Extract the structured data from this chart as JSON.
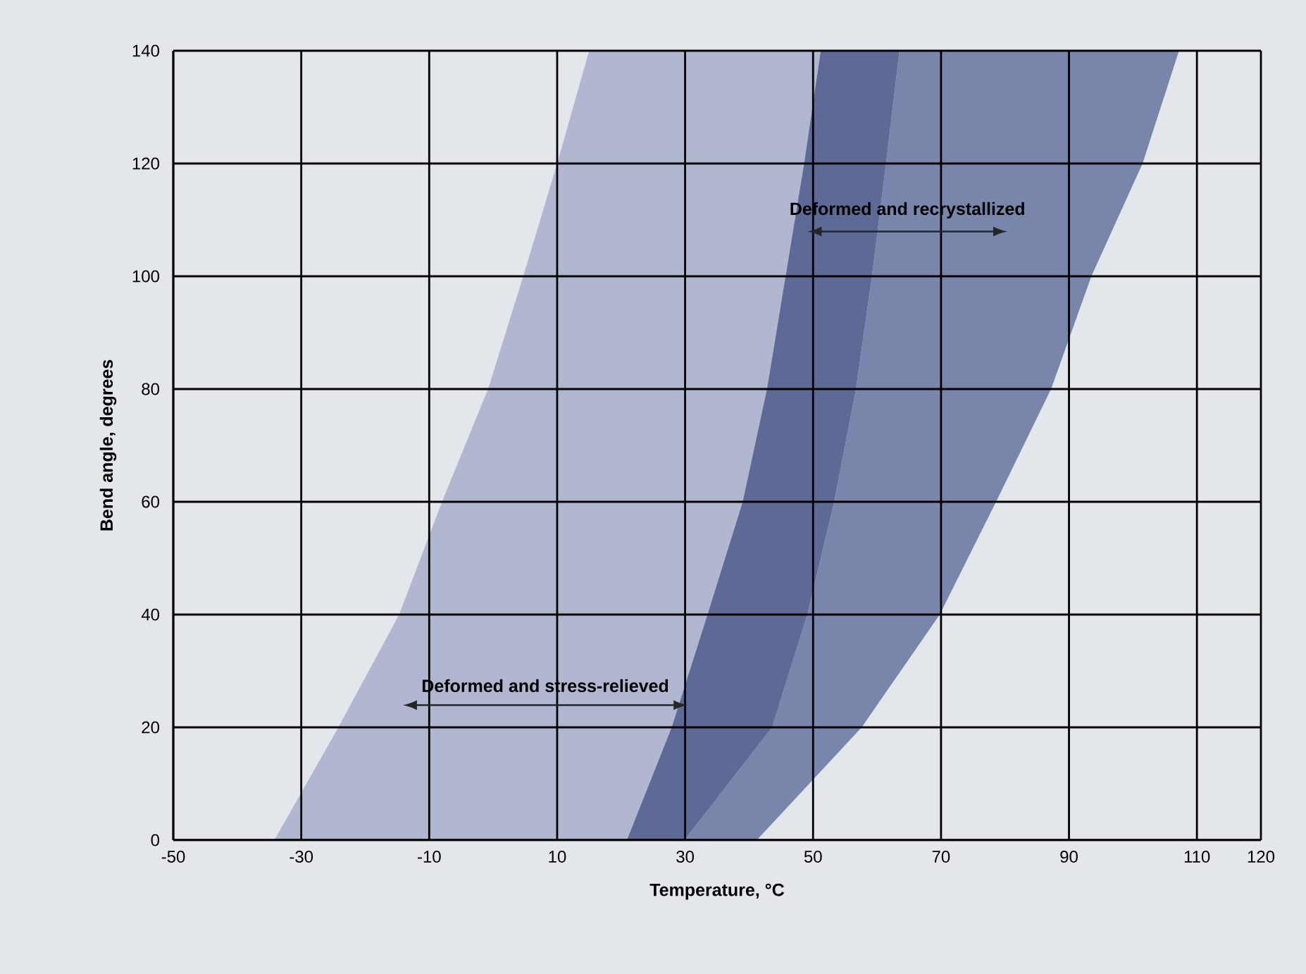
{
  "chart_data": {
    "type": "area",
    "xlabel": "Temperature, °C",
    "ylabel": "Bend angle, degrees",
    "xlim": [
      -50,
      120
    ],
    "ylim": [
      0,
      140
    ],
    "xticks": [
      -50,
      -30,
      -10,
      10,
      30,
      50,
      70,
      90,
      110,
      120
    ],
    "yticks": [
      0,
      20,
      40,
      60,
      80,
      100,
      120,
      140
    ],
    "grid": true,
    "series": [
      {
        "color": "#b1b7d0",
        "x": [
          -34.2,
          -24.2,
          -14.7,
          -8.0,
          -0.8,
          4.7,
          10.0,
          15.0,
          51.2,
          48.6,
          45.7,
          42.8,
          39.0,
          33.5,
          27.9,
          20.9
        ],
        "values": [
          0,
          20,
          40,
          60,
          80,
          100,
          120,
          140,
          140,
          120,
          100,
          80,
          60,
          40,
          20,
          0
        ]
      },
      {
        "color": "#7886ab",
        "x": [
          29.9,
          43.6,
          49.1,
          53.3,
          56.7,
          59.2,
          61.4,
          63.5,
          107.2,
          101.5,
          93.5,
          87.2,
          78.6,
          69.8,
          57.6,
          41.2
        ],
        "values": [
          0,
          20,
          40,
          60,
          80,
          100,
          120,
          140,
          140,
          120,
          100,
          80,
          60,
          40,
          20,
          0
        ]
      },
      {
        "color": "#5e6a96",
        "x": [
          20.9,
          27.9,
          33.5,
          39.0,
          42.8,
          45.7,
          48.6,
          51.2,
          63.5,
          61.4,
          59.2,
          56.7,
          53.3,
          49.1,
          43.6,
          29.9
        ],
        "values": [
          0,
          20,
          40,
          60,
          80,
          100,
          120,
          140,
          140,
          120,
          100,
          80,
          60,
          40,
          20,
          0
        ]
      }
    ],
    "annotations": [
      "Deformed and stress-relieved",
      "Deformed and recrystallized"
    ]
  }
}
